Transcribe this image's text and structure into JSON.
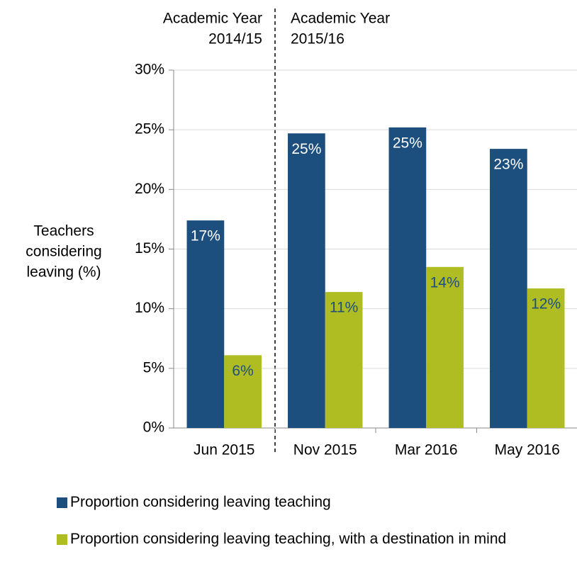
{
  "chart_data": {
    "type": "bar",
    "annotations": [
      [
        "Academic Year",
        "2014/15"
      ],
      [
        "Academic Year",
        "2015/16"
      ]
    ],
    "y_label": [
      "Teachers",
      "considering",
      "leaving (%)"
    ],
    "categories": [
      "Jun 2015",
      "Nov 2015",
      "Mar 2016",
      "May 2016"
    ],
    "series": [
      {
        "name": "Proportion considering leaving teaching",
        "color": "#1d4f7e",
        "values": [
          17.4,
          24.7,
          25.2,
          23.4
        ],
        "value_labels": [
          "17%",
          "25%",
          "25%",
          "23%"
        ]
      },
      {
        "name": "Proportion considering leaving teaching, with a destination in mind",
        "color": "#afbd22",
        "values": [
          6.1,
          11.4,
          13.5,
          11.7
        ],
        "value_labels": [
          "6%",
          "11%",
          "14%",
          "12%"
        ]
      }
    ],
    "ylim": [
      0,
      30
    ],
    "yticks": [
      {
        "value": 0,
        "label": "0%"
      },
      {
        "value": 5,
        "label": "5%"
      },
      {
        "value": 10,
        "label": "10%"
      },
      {
        "value": 15,
        "label": "15%"
      },
      {
        "value": 20,
        "label": "20%"
      },
      {
        "value": 25,
        "label": "25%"
      },
      {
        "value": 30,
        "label": "30%"
      }
    ],
    "grid": true
  }
}
